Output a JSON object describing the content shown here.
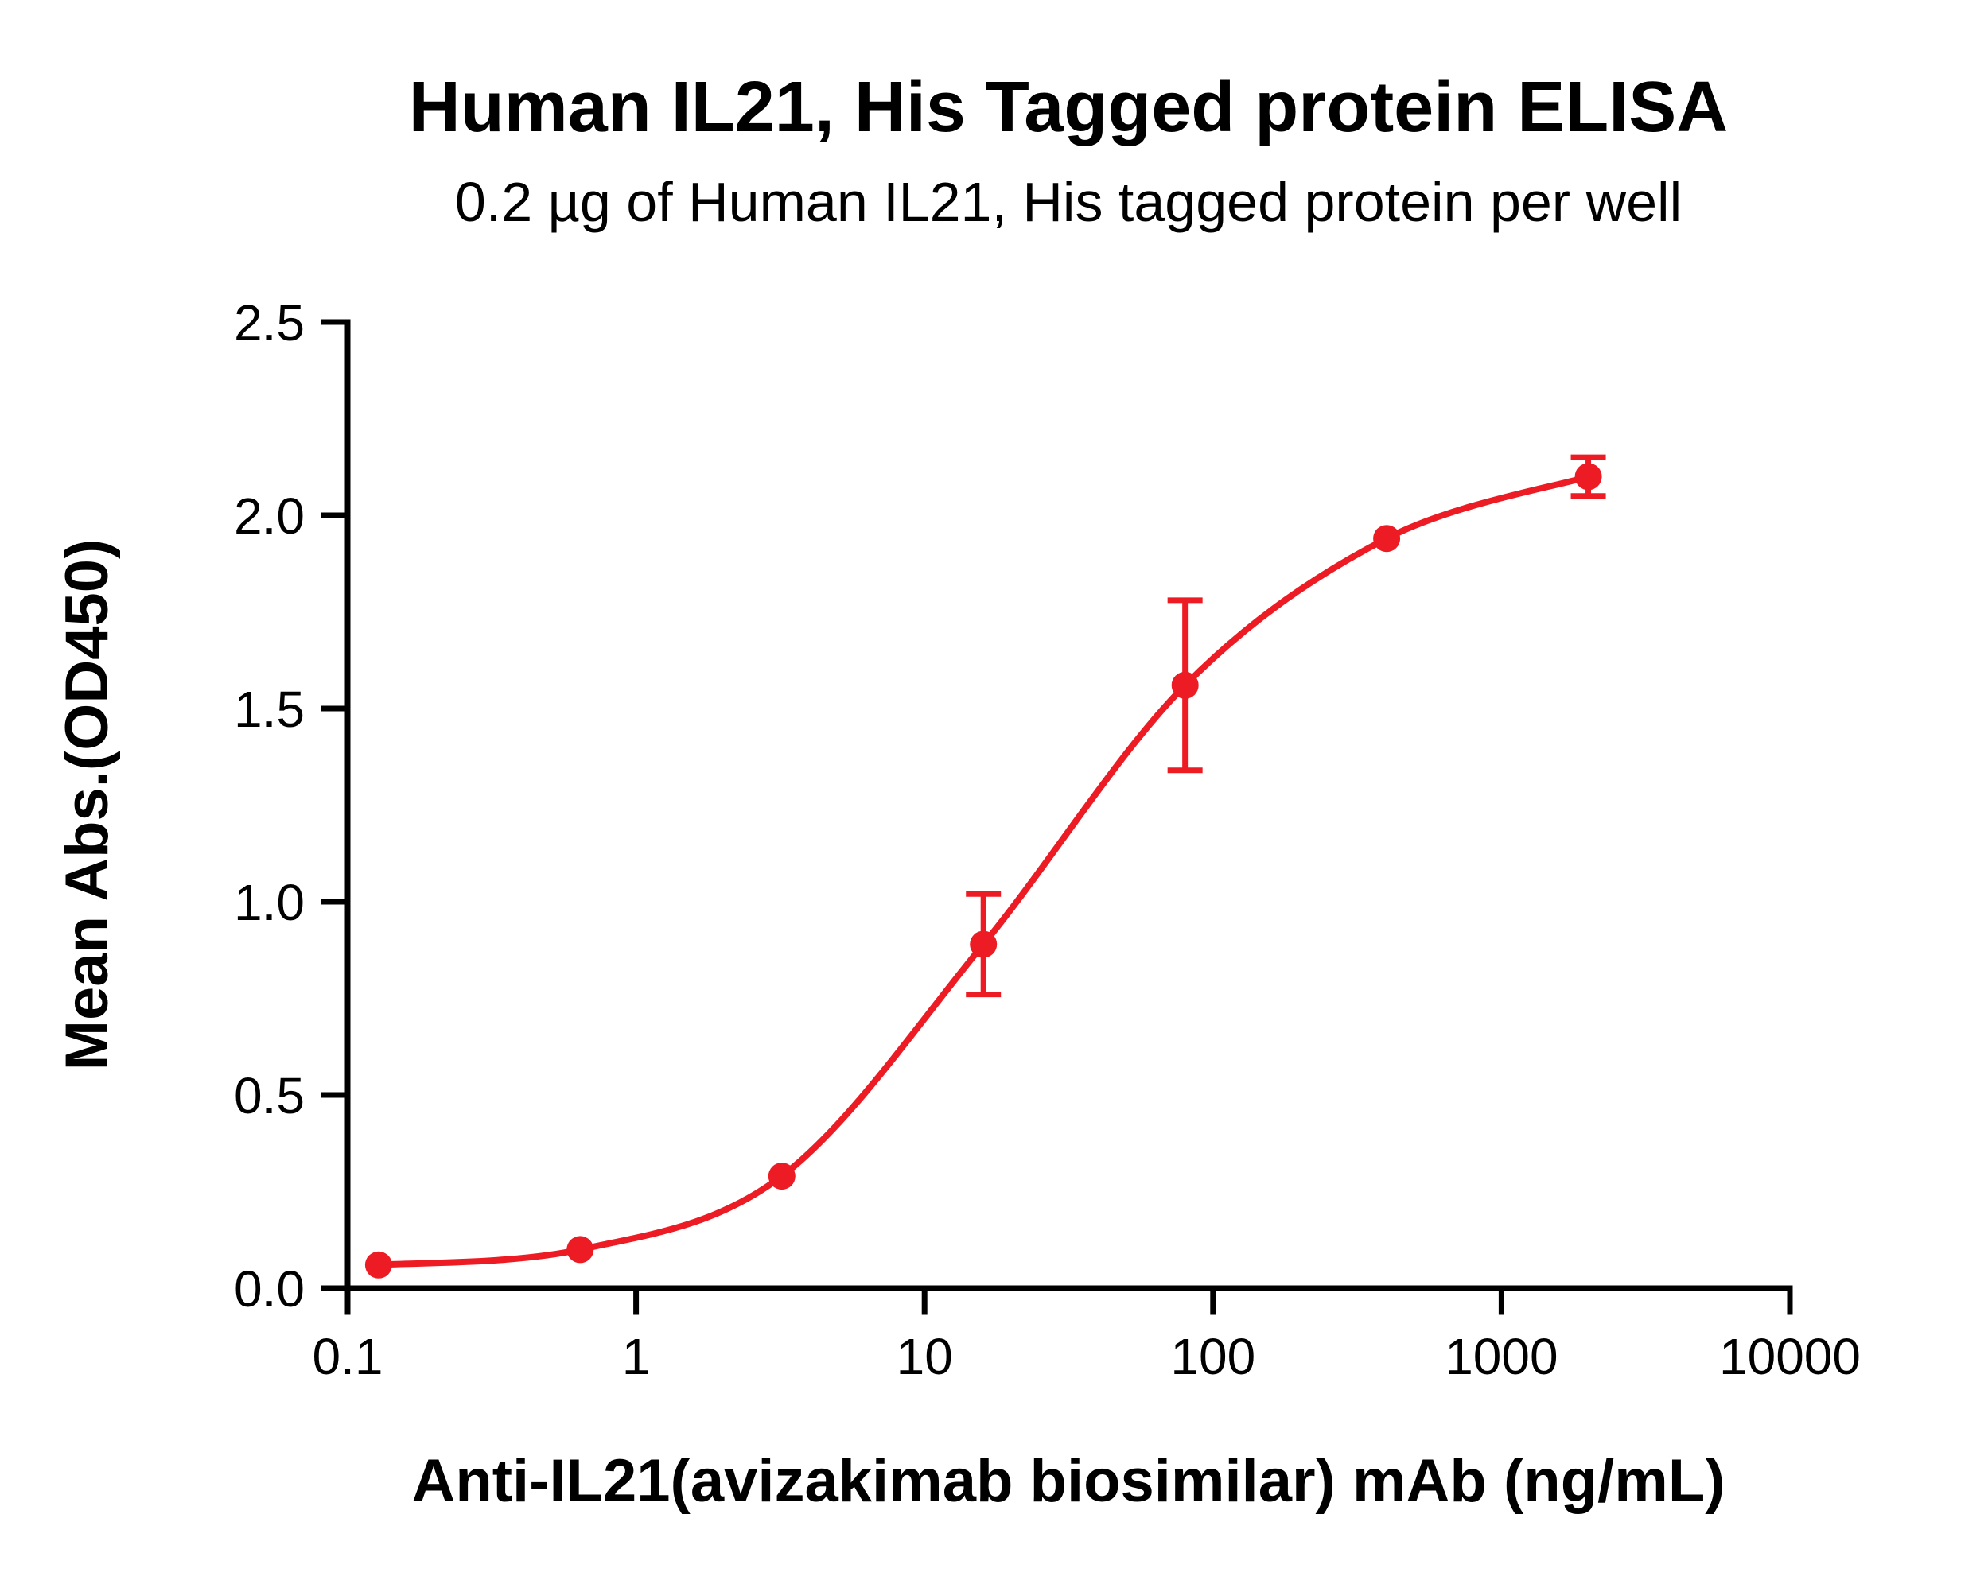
{
  "chart_data": {
    "type": "scatter",
    "title": "Human IL21, His Tagged protein ELISA",
    "subtitle": "0.2 µg of Human IL21, His tagged protein per well",
    "xlabel": "Anti-IL21(avizakimab biosimilar) mAb (ng/mL)",
    "ylabel": "Mean Abs.(OD450)",
    "x_scale": "log10",
    "xlim": [
      0.1,
      10000
    ],
    "ylim": [
      0.0,
      2.5
    ],
    "x_ticks": [
      0.1,
      1,
      10,
      100,
      1000,
      10000
    ],
    "x_tick_labels": [
      "0.1",
      "1",
      "10",
      "100",
      "1000",
      "10000"
    ],
    "y_ticks": [
      0.0,
      0.5,
      1.0,
      1.5,
      2.0,
      2.5
    ],
    "y_tick_labels": [
      "0.0",
      "0.5",
      "1.0",
      "1.5",
      "2.0",
      "2.5"
    ],
    "grid": false,
    "legend": "none",
    "series": [
      {
        "name": "Anti-IL21(avizakimab biosimilar) mAb",
        "color": "#ed1c24",
        "marker": "circle",
        "line": "sigmoidal-fit-curve",
        "x": [
          0.128,
          0.64,
          3.2,
          16,
          80,
          400,
          2000
        ],
        "y": [
          0.06,
          0.1,
          0.29,
          0.89,
          1.56,
          1.94,
          2.1
        ],
        "y_error": [
          0,
          0,
          0,
          0.13,
          0.22,
          0,
          0.05
        ]
      }
    ]
  }
}
